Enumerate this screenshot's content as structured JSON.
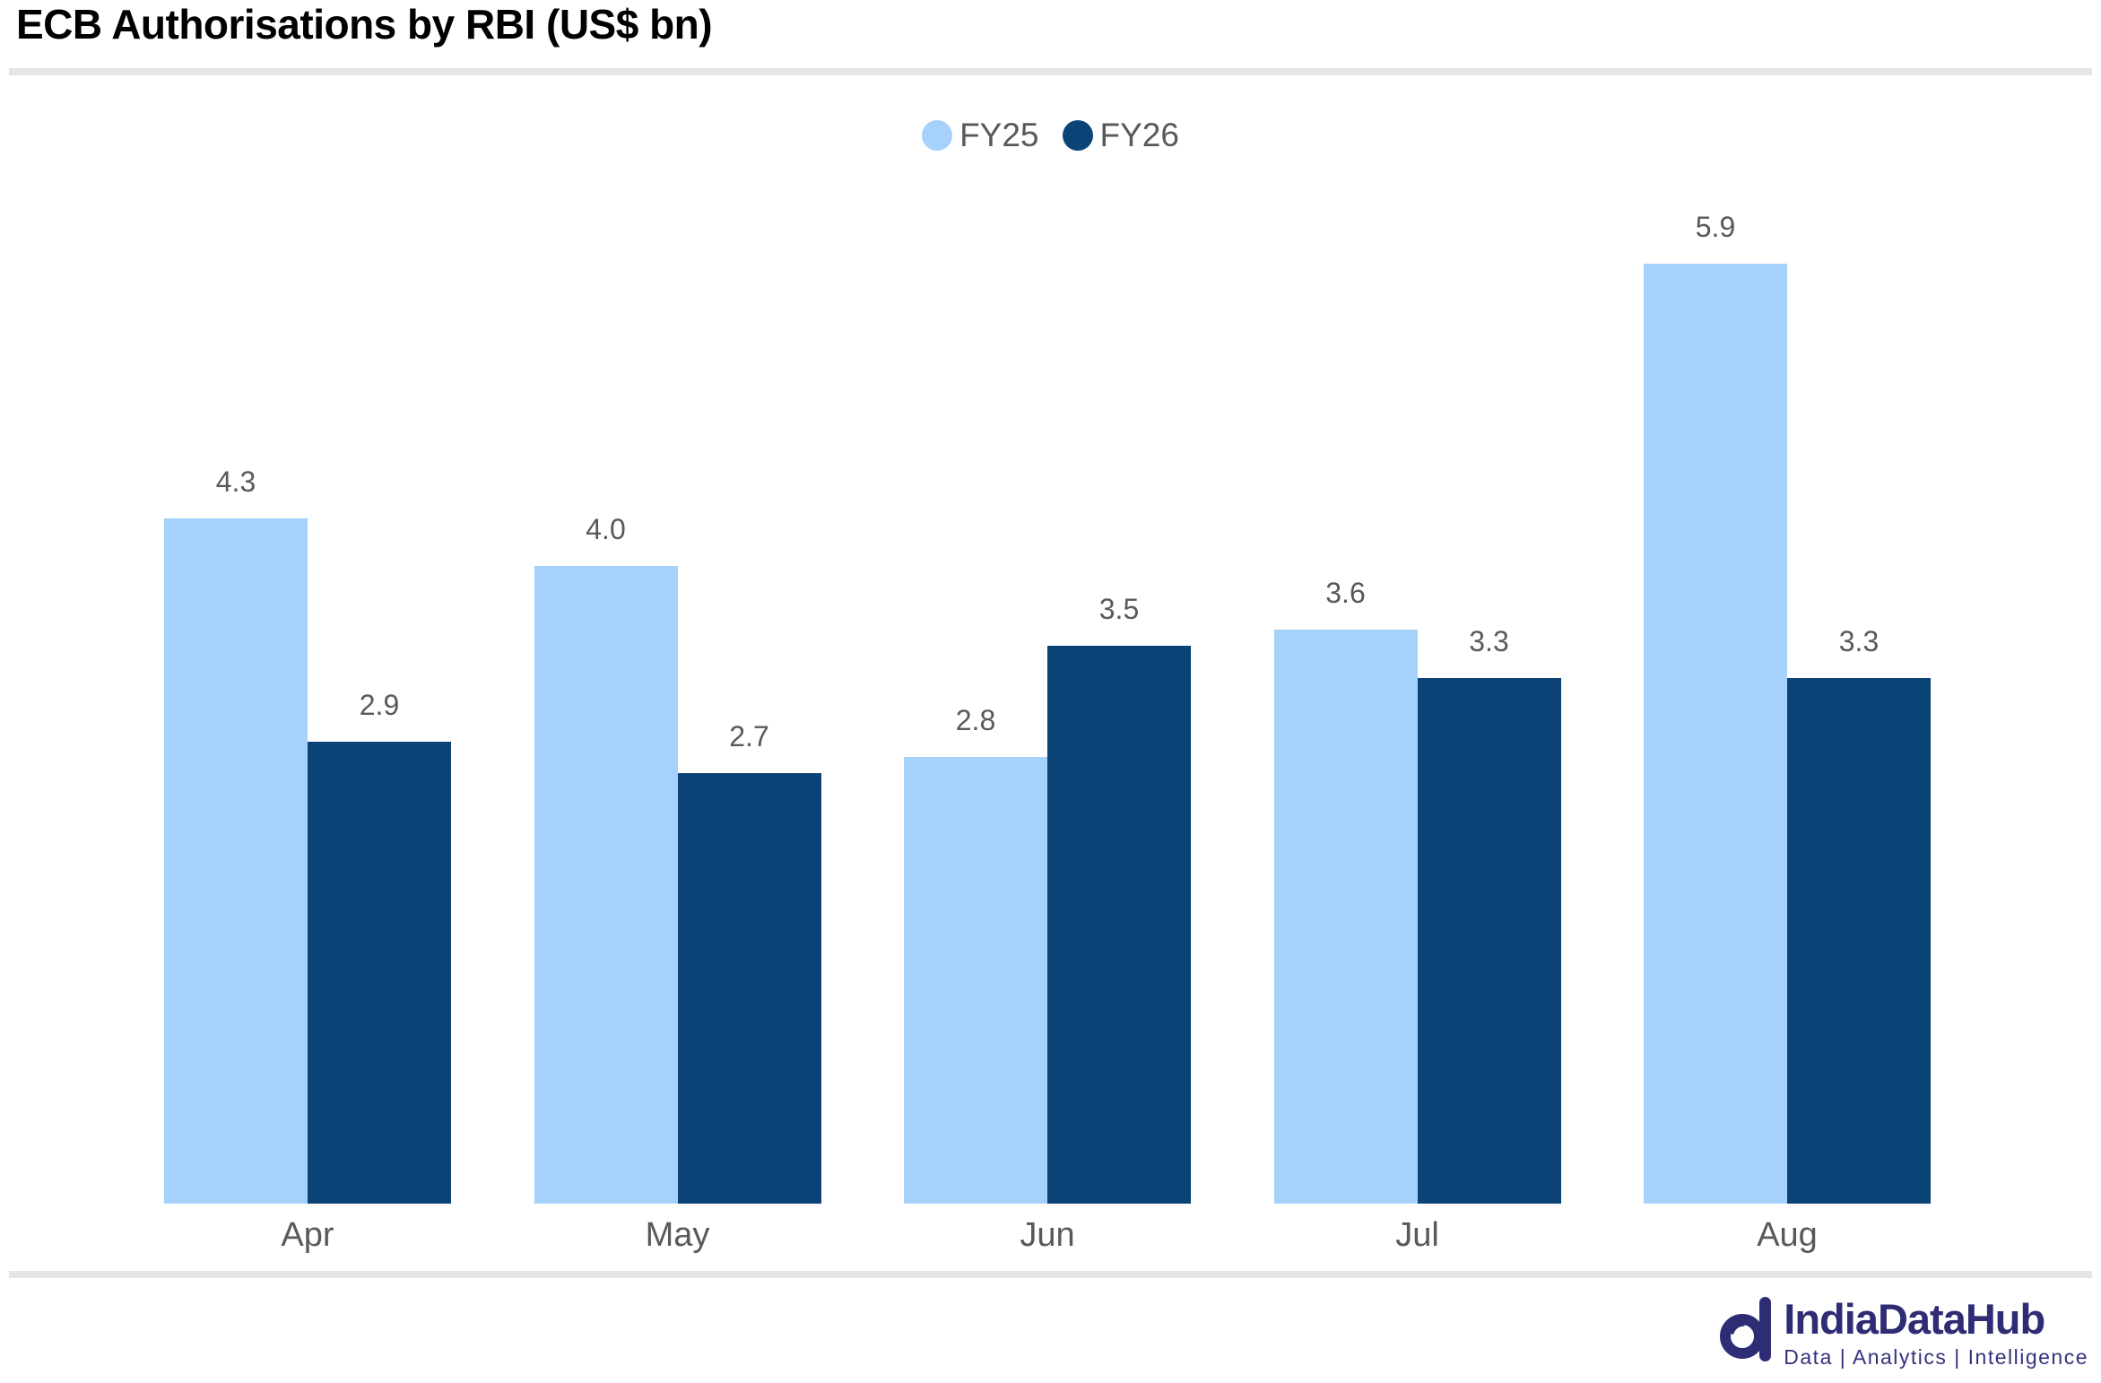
{
  "title": "ECB Authorisations by RBI (US$ bn)",
  "legend": {
    "items": [
      {
        "label": "FY25",
        "color": "#A5D1FA"
      },
      {
        "label": "FY26",
        "color": "#0B4377"
      }
    ]
  },
  "chart_data": {
    "type": "bar",
    "title": "ECB Authorisations by RBI (US$ bn)",
    "categories": [
      "Apr",
      "May",
      "Jun",
      "Jul",
      "Aug"
    ],
    "series": [
      {
        "name": "FY25",
        "color": "#A5D1FA",
        "values": [
          4.3,
          4.0,
          2.8,
          3.6,
          5.9
        ],
        "labels": [
          "4.3",
          "4.0",
          "2.8",
          "3.6",
          "5.9"
        ]
      },
      {
        "name": "FY26",
        "color": "#0B4377",
        "values": [
          2.9,
          2.7,
          3.5,
          3.3,
          3.3
        ],
        "labels": [
          "2.9",
          "2.7",
          "3.5",
          "3.3",
          "3.3"
        ]
      }
    ],
    "xlabel": "",
    "ylabel": "",
    "ylim": [
      0,
      6.6
    ],
    "grid": false,
    "y_axis_visible": false,
    "data_labels": true,
    "data_label_color": "#595959",
    "category_label_color": "#595959",
    "legend_position": "top-center"
  },
  "footer": {
    "brand": "IndiaDataHub",
    "tagline": "Data | Analytics | Intelligence",
    "brand_color": "#2E2C75",
    "tagline_color": "#34327C"
  }
}
